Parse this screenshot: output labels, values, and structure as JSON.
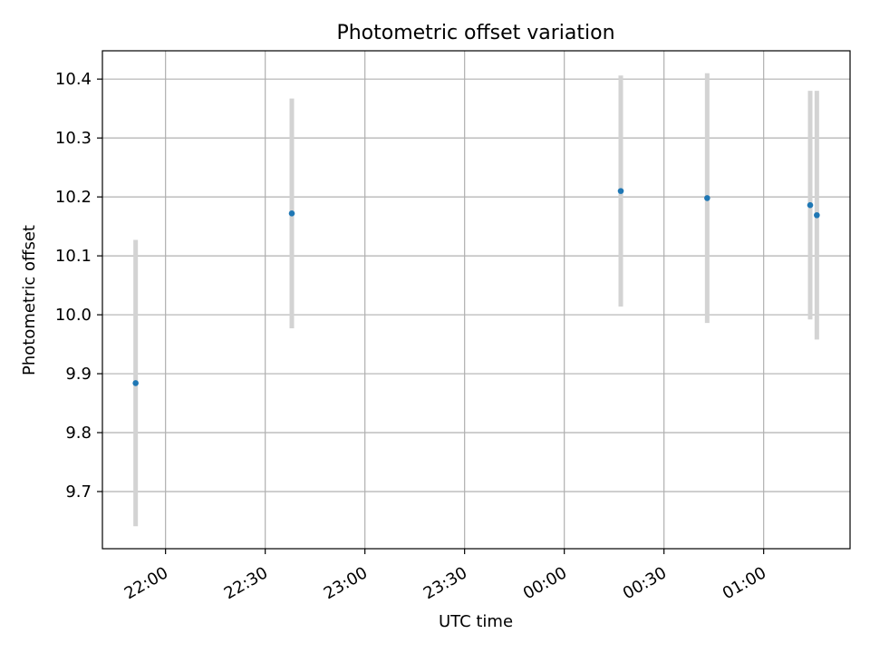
{
  "chart_data": {
    "type": "scatter",
    "title": "Photometric offset variation",
    "xlabel": "UTC time",
    "ylabel": "Photometric offset",
    "grid": true,
    "x_ticks": [
      "22:00",
      "22:30",
      "23:00",
      "23:30",
      "00:00",
      "00:30",
      "01:00"
    ],
    "y_ticks": [
      "9.7",
      "9.8",
      "9.9",
      "10.0",
      "10.1",
      "10.2",
      "10.3",
      "10.4"
    ],
    "points": [
      {
        "time": "21:51",
        "y": 9.884,
        "err": 0.243
      },
      {
        "time": "22:38",
        "y": 10.172,
        "err": 0.195
      },
      {
        "time": "00:17",
        "y": 10.21,
        "err": 0.196
      },
      {
        "time": "00:43",
        "y": 10.198,
        "err": 0.212
      },
      {
        "time": "01:14",
        "y": 10.186,
        "err": 0.194
      },
      {
        "time": "01:16",
        "y": 10.169,
        "err": 0.211
      }
    ],
    "colors": {
      "marker": "#1f77b4",
      "errorbar": "#d3d3d3",
      "grid": "#b0b0b0"
    }
  }
}
